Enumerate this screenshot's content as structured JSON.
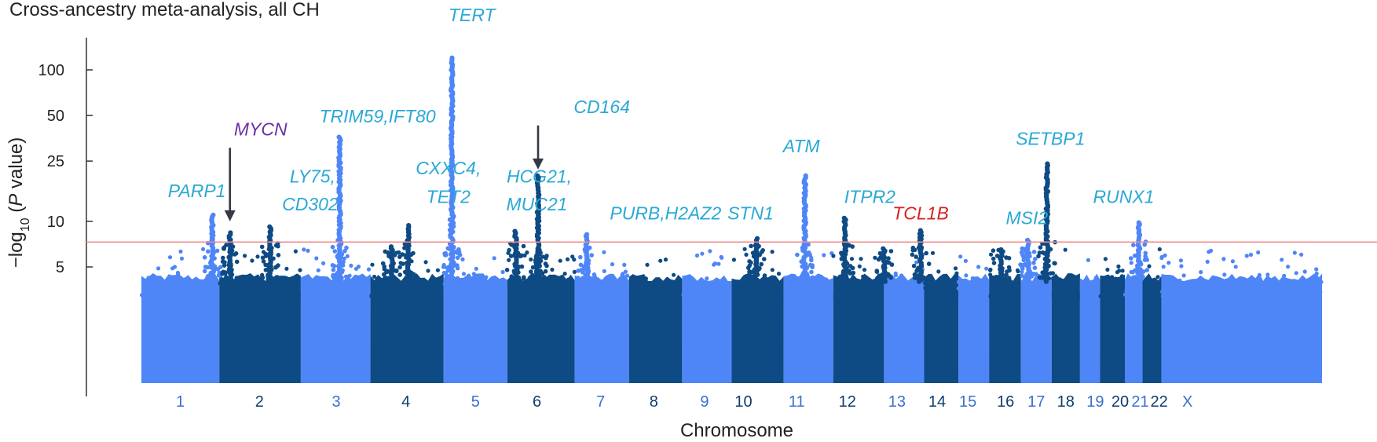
{
  "chart_data": {
    "type": "scatter",
    "subtype": "manhattan",
    "title": "Cross-ancestry meta-analysis, all CH",
    "xlabel": "Chromosome",
    "ylabel_parts": {
      "prefix": "−log",
      "sub": "10",
      "open": " (",
      "p": "P",
      "rest": " value)"
    },
    "yticks": [
      {
        "label": "5",
        "value": 5
      },
      {
        "label": "10",
        "value": 10
      },
      {
        "label": "25",
        "value": 25
      },
      {
        "label": "50",
        "value": 50
      },
      {
        "label": "100",
        "value": 100
      }
    ],
    "significance_threshold": 7.3,
    "colors": {
      "light": "#4f86f7",
      "dark": "#0e4a84",
      "label_light": "#3a6fd1",
      "label_dark": "#0e3d6e",
      "gene": "#2aa9d6",
      "threshold": "#f08c8c",
      "highlight_purple": "#6b2fa5",
      "highlight_red": "#d62323",
      "arrow": "#333a45",
      "axis": "#333333"
    },
    "chromosomes": [
      {
        "name": "1",
        "start": 0,
        "end": 0.066,
        "shade": "light",
        "label_x": 0.033
      },
      {
        "name": "2",
        "start": 0.066,
        "end": 0.135,
        "shade": "dark",
        "label_x": 0.1
      },
      {
        "name": "3",
        "start": 0.135,
        "end": 0.194,
        "shade": "light",
        "label_x": 0.165
      },
      {
        "name": "4",
        "start": 0.194,
        "end": 0.256,
        "shade": "dark",
        "label_x": 0.224
      },
      {
        "name": "5",
        "start": 0.256,
        "end": 0.31,
        "shade": "light",
        "label_x": 0.283
      },
      {
        "name": "6",
        "start": 0.31,
        "end": 0.367,
        "shade": "dark",
        "label_x": 0.335
      },
      {
        "name": "7",
        "start": 0.367,
        "end": 0.413,
        "shade": "light",
        "label_x": 0.389
      },
      {
        "name": "8",
        "start": 0.413,
        "end": 0.458,
        "shade": "dark",
        "label_x": 0.434
      },
      {
        "name": "9",
        "start": 0.458,
        "end": 0.5,
        "shade": "light",
        "label_x": 0.477
      },
      {
        "name": "10",
        "start": 0.5,
        "end": 0.544,
        "shade": "dark",
        "label_x": 0.51
      },
      {
        "name": "11",
        "start": 0.544,
        "end": 0.586,
        "shade": "light",
        "label_x": 0.555
      },
      {
        "name": "12",
        "start": 0.586,
        "end": 0.629,
        "shade": "dark",
        "label_x": 0.598
      },
      {
        "name": "13",
        "start": 0.629,
        "end": 0.663,
        "shade": "light",
        "label_x": 0.64
      },
      {
        "name": "14",
        "start": 0.663,
        "end": 0.692,
        "shade": "dark",
        "label_x": 0.674
      },
      {
        "name": "15",
        "start": 0.692,
        "end": 0.718,
        "shade": "light",
        "label_x": 0.7
      },
      {
        "name": "16",
        "start": 0.718,
        "end": 0.745,
        "shade": "dark",
        "label_x": 0.732
      },
      {
        "name": "17",
        "start": 0.745,
        "end": 0.771,
        "shade": "light",
        "label_x": 0.758
      },
      {
        "name": "18",
        "start": 0.771,
        "end": 0.795,
        "shade": "dark",
        "label_x": 0.783
      },
      {
        "name": "19",
        "start": 0.795,
        "end": 0.812,
        "shade": "light",
        "label_x": 0.808
      },
      {
        "name": "20",
        "start": 0.812,
        "end": 0.833,
        "shade": "dark",
        "label_x": 0.829
      },
      {
        "name": "21",
        "start": 0.833,
        "end": 0.848,
        "shade": "light",
        "label_x": 0.846
      },
      {
        "name": "22",
        "start": 0.848,
        "end": 0.864,
        "shade": "dark",
        "label_x": 0.862
      },
      {
        "name": "X",
        "start": 0.864,
        "end": 1.0,
        "shade": "light",
        "label_x": 0.886
      }
    ],
    "peaks": [
      {
        "x": 0.263,
        "y": 120,
        "shade": "light"
      },
      {
        "x": 0.168,
        "y": 36,
        "shade": "light"
      },
      {
        "x": 0.336,
        "y": 20,
        "shade": "dark"
      },
      {
        "x": 0.562,
        "y": 20,
        "shade": "light"
      },
      {
        "x": 0.767,
        "y": 24,
        "shade": "dark"
      },
      {
        "x": 0.06,
        "y": 11,
        "shade": "light"
      },
      {
        "x": 0.075,
        "y": 8.4,
        "shade": "dark"
      },
      {
        "x": 0.109,
        "y": 9.2,
        "shade": "dark"
      },
      {
        "x": 0.226,
        "y": 9.4,
        "shade": "dark"
      },
      {
        "x": 0.317,
        "y": 8.6,
        "shade": "dark"
      },
      {
        "x": 0.377,
        "y": 8.2,
        "shade": "light"
      },
      {
        "x": 0.521,
        "y": 7.7,
        "shade": "dark"
      },
      {
        "x": 0.596,
        "y": 10.5,
        "shade": "dark"
      },
      {
        "x": 0.66,
        "y": 8.7,
        "shade": "dark"
      },
      {
        "x": 0.751,
        "y": 7.5,
        "shade": "light"
      },
      {
        "x": 0.845,
        "y": 9.8,
        "shade": "light"
      },
      {
        "x": 0.212,
        "y": 6.8,
        "shade": "dark"
      },
      {
        "x": 0.629,
        "y": 6.6,
        "shade": "dark"
      },
      {
        "x": 0.728,
        "y": 6.5,
        "shade": "dark"
      }
    ],
    "annotations": [
      {
        "text": "PARP1",
        "x": 0.047,
        "y": 14.5,
        "color": "gene"
      },
      {
        "text": "MYCN",
        "x": 0.101,
        "y": 37,
        "color": "highlight_purple",
        "arrow_to_x": 0.075,
        "arrow_to_y": 10
      },
      {
        "text": "LY75,",
        "x": 0.145,
        "y": 18,
        "color": "gene"
      },
      {
        "text": "CD302",
        "x": 0.143,
        "y": 11.8,
        "color": "gene"
      },
      {
        "text": "TRIM59,IFT80",
        "x": 0.2,
        "y": 45,
        "color": "gene"
      },
      {
        "text": "CXXC4,",
        "x": 0.26,
        "y": 20.5,
        "color": "gene"
      },
      {
        "text": "TET2",
        "x": 0.26,
        "y": 13.2,
        "color": "gene"
      },
      {
        "text": "TERT",
        "x": 0.28,
        "y": 210,
        "color": "gene"
      },
      {
        "text": "HCG21,",
        "x": 0.337,
        "y": 18,
        "color": "gene"
      },
      {
        "text": "MUC21",
        "x": 0.335,
        "y": 11.8,
        "color": "gene"
      },
      {
        "text": "CD164",
        "x": 0.39,
        "y": 52,
        "color": "gene",
        "arrow_to_x": 0.336,
        "arrow_to_y": 22
      },
      {
        "text": "PURB,H2AZ2",
        "x": 0.444,
        "y": 10.3,
        "color": "gene"
      },
      {
        "text": "STN1",
        "x": 0.516,
        "y": 10.3,
        "color": "gene"
      },
      {
        "text": "ATM",
        "x": 0.559,
        "y": 28.5,
        "color": "gene"
      },
      {
        "text": "ITPR2",
        "x": 0.617,
        "y": 13.2,
        "color": "gene"
      },
      {
        "text": "TCL1B",
        "x": 0.66,
        "y": 10.3,
        "color": "highlight_red"
      },
      {
        "text": "MSI2",
        "x": 0.75,
        "y": 9.6,
        "color": "gene"
      },
      {
        "text": "SETBP1",
        "x": 0.77,
        "y": 32,
        "color": "gene"
      },
      {
        "text": "RUNX1",
        "x": 0.832,
        "y": 13.2,
        "color": "gene"
      }
    ]
  }
}
